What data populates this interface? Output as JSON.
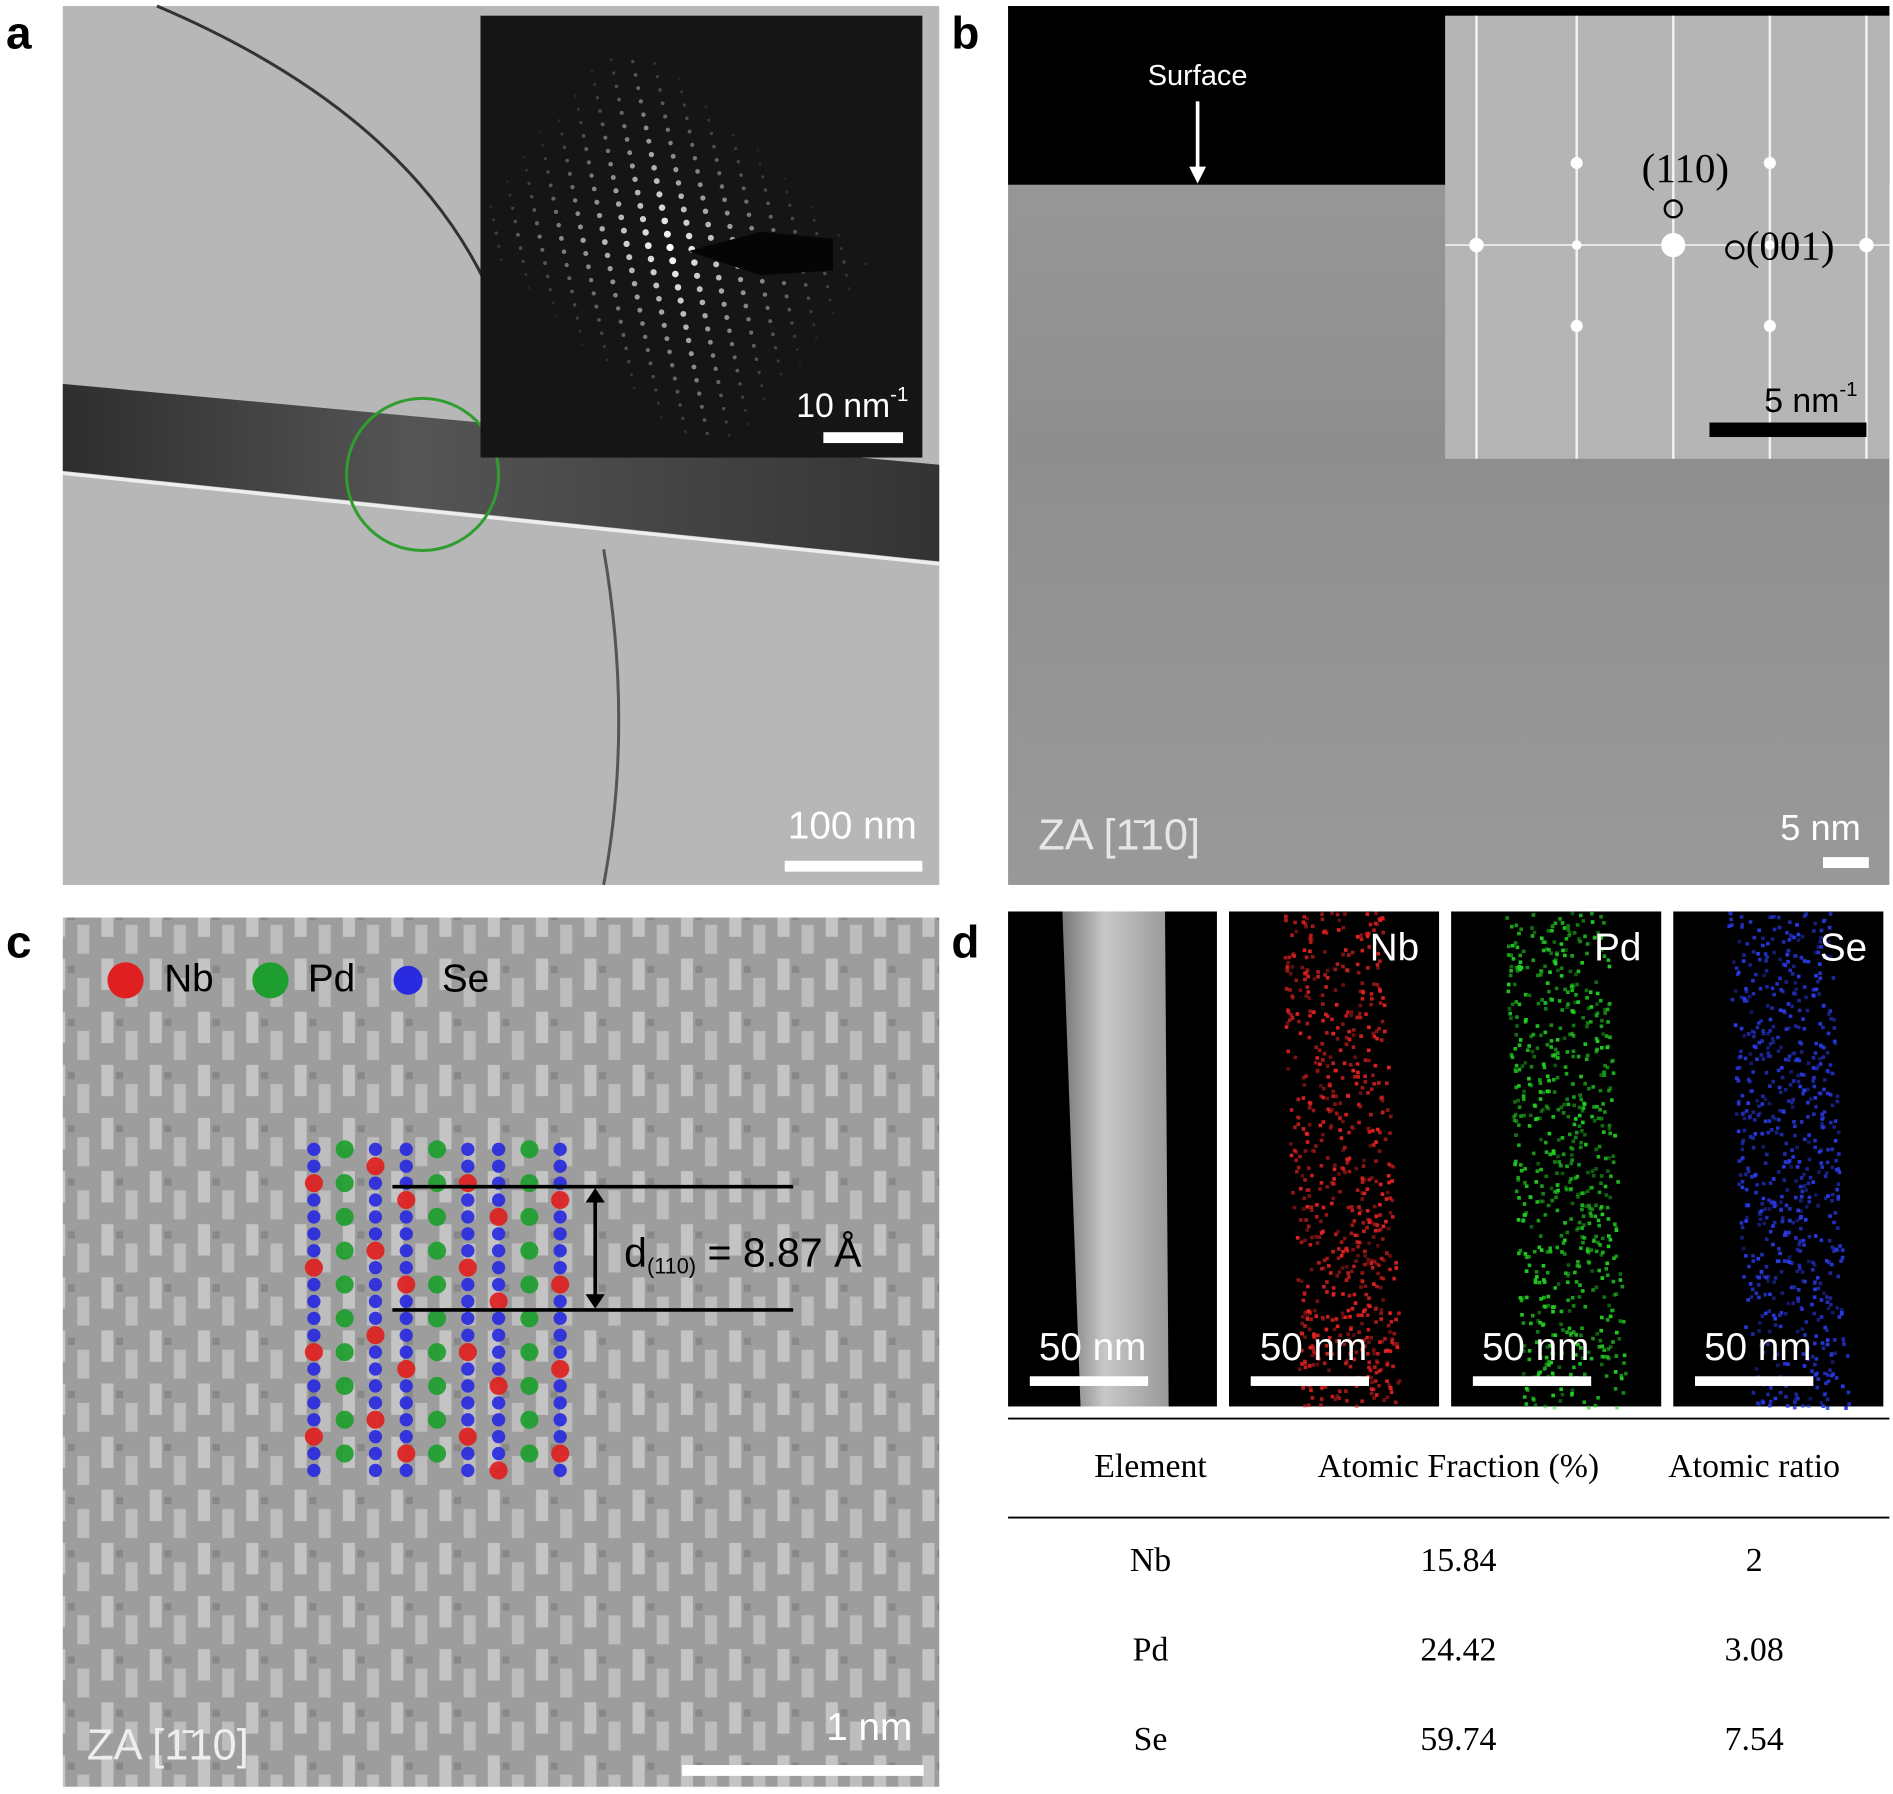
{
  "panels": {
    "a": {
      "label": "a",
      "scale_bar": "100 nm",
      "inset_scale_bar": {
        "text": "10 nm",
        "sup": "-1"
      }
    },
    "b": {
      "label": "b",
      "annotation": "Surface",
      "inset_spots": [
        "(110)",
        "(001)"
      ],
      "inset_scale_bar": {
        "text": "5 nm",
        "sup": "-1"
      },
      "scale_bar": "5 nm",
      "zone_axis": "ZA [1̄10]"
    },
    "c": {
      "label": "c",
      "legend": [
        "Nb",
        "Pd",
        "Se"
      ],
      "spacing": {
        "symbol": "d",
        "subscript": "(110)",
        "text": " = 8.87 Å"
      },
      "scale_bar": "1 nm",
      "zone_axis": "ZA [1̄10]"
    },
    "d": {
      "label": "d",
      "maps": [
        "Nb",
        "Pd",
        "Se"
      ],
      "scale_bars": [
        "50 nm",
        "50 nm",
        "50 nm",
        "50 nm"
      ],
      "table": {
        "header": [
          "Element",
          "Atomic Fraction (%)",
          "Atomic ratio"
        ],
        "rows": [
          [
            "Nb",
            15.84,
            2
          ],
          [
            "Pd",
            24.42,
            3.08
          ],
          [
            "Se",
            59.74,
            7.54
          ]
        ]
      }
    }
  }
}
